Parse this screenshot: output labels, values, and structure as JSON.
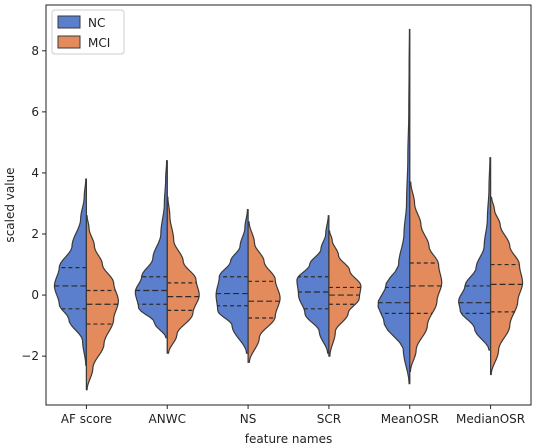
{
  "chart_data": {
    "type": "violin",
    "title": "",
    "xlabel": "feature names",
    "ylabel": "scaled value",
    "ylim": [
      -3.6,
      9.5
    ],
    "yticks": [
      -2,
      0,
      2,
      4,
      6,
      8
    ],
    "grid": false,
    "legend_position": "top-left",
    "categories": [
      "AF score",
      "ANWC",
      "NS",
      "SCR",
      "MeanOSR",
      "MedianOSR"
    ],
    "series": [
      {
        "name": "NC",
        "color": "#5b7fcc",
        "violins": [
          {
            "ymin": -2.3,
            "ymax": 3.8,
            "q1": -0.45,
            "median": 0.3,
            "q3": 0.9,
            "profile": [
              [
                -2.3,
                0.02
              ],
              [
                -1.5,
                0.12
              ],
              [
                -0.8,
                0.55
              ],
              [
                -0.3,
                0.85
              ],
              [
                0.3,
                1.0
              ],
              [
                0.9,
                0.85
              ],
              [
                1.6,
                0.45
              ],
              [
                2.5,
                0.18
              ],
              [
                3.2,
                0.07
              ],
              [
                3.8,
                0.02
              ]
            ]
          },
          {
            "ymin": -1.4,
            "ymax": 4.4,
            "q1": -0.3,
            "median": 0.15,
            "q3": 0.6,
            "profile": [
              [
                -1.4,
                0.04
              ],
              [
                -0.9,
                0.4
              ],
              [
                -0.4,
                0.9
              ],
              [
                0.1,
                1.0
              ],
              [
                0.6,
                0.8
              ],
              [
                1.2,
                0.45
              ],
              [
                2.0,
                0.2
              ],
              [
                3.0,
                0.09
              ],
              [
                3.8,
                0.05
              ],
              [
                4.4,
                0.02
              ]
            ]
          },
          {
            "ymin": -1.9,
            "ymax": 2.8,
            "q1": -0.35,
            "median": 0.05,
            "q3": 0.6,
            "profile": [
              [
                -1.9,
                0.05
              ],
              [
                -1.0,
                0.5
              ],
              [
                -0.5,
                0.95
              ],
              [
                0.0,
                1.0
              ],
              [
                0.6,
                0.9
              ],
              [
                1.1,
                0.55
              ],
              [
                1.6,
                0.25
              ],
              [
                2.2,
                0.1
              ],
              [
                2.8,
                0.02
              ]
            ]
          },
          {
            "ymin": -1.9,
            "ymax": 2.6,
            "q1": -0.45,
            "median": 0.1,
            "q3": 0.6,
            "profile": [
              [
                -1.9,
                0.04
              ],
              [
                -1.2,
                0.3
              ],
              [
                -0.6,
                0.75
              ],
              [
                0.0,
                0.95
              ],
              [
                0.5,
                1.0
              ],
              [
                1.0,
                0.6
              ],
              [
                1.5,
                0.25
              ],
              [
                2.0,
                0.1
              ],
              [
                2.6,
                0.02
              ]
            ]
          },
          {
            "ymin": -2.9,
            "ymax": 8.7,
            "q1": -0.6,
            "median": -0.25,
            "q3": 0.25,
            "profile": [
              [
                -2.9,
                0.02
              ],
              [
                -1.8,
                0.2
              ],
              [
                -0.9,
                0.8
              ],
              [
                -0.3,
                1.0
              ],
              [
                0.3,
                0.75
              ],
              [
                1.0,
                0.35
              ],
              [
                2.0,
                0.18
              ],
              [
                3.0,
                0.1
              ],
              [
                4.5,
                0.06
              ],
              [
                6.0,
                0.03
              ],
              [
                7.5,
                0.02
              ],
              [
                8.7,
                0.01
              ]
            ]
          },
          {
            "ymin": -1.8,
            "ymax": 4.5,
            "q1": -0.6,
            "median": -0.25,
            "q3": 0.3,
            "profile": [
              [
                -1.8,
                0.05
              ],
              [
                -1.1,
                0.5
              ],
              [
                -0.5,
                0.95
              ],
              [
                -0.2,
                1.0
              ],
              [
                0.3,
                0.8
              ],
              [
                0.9,
                0.45
              ],
              [
                1.6,
                0.2
              ],
              [
                2.5,
                0.1
              ],
              [
                3.5,
                0.05
              ],
              [
                4.5,
                0.02
              ]
            ]
          }
        ]
      },
      {
        "name": "MCI",
        "color": "#e38b5c",
        "violins": [
          {
            "ymin": -3.1,
            "ymax": 2.6,
            "q1": -0.95,
            "median": -0.3,
            "q3": 0.15,
            "profile": [
              [
                -3.1,
                0.02
              ],
              [
                -2.4,
                0.2
              ],
              [
                -1.6,
                0.55
              ],
              [
                -0.8,
                0.85
              ],
              [
                -0.2,
                1.0
              ],
              [
                0.4,
                0.85
              ],
              [
                1.0,
                0.5
              ],
              [
                1.6,
                0.25
              ],
              [
                2.2,
                0.08
              ],
              [
                2.6,
                0.02
              ]
            ]
          },
          {
            "ymin": -1.9,
            "ymax": 3.2,
            "q1": -0.5,
            "median": -0.05,
            "q3": 0.4,
            "profile": [
              [
                -1.9,
                0.04
              ],
              [
                -1.3,
                0.3
              ],
              [
                -0.6,
                0.8
              ],
              [
                0.0,
                1.0
              ],
              [
                0.5,
                0.9
              ],
              [
                1.1,
                0.5
              ],
              [
                1.8,
                0.2
              ],
              [
                2.6,
                0.08
              ],
              [
                3.2,
                0.02
              ]
            ]
          },
          {
            "ymin": -2.2,
            "ymax": 2.4,
            "q1": -0.75,
            "median": -0.2,
            "q3": 0.45,
            "profile": [
              [
                -2.2,
                0.04
              ],
              [
                -1.4,
                0.35
              ],
              [
                -0.7,
                0.85
              ],
              [
                -0.1,
                1.0
              ],
              [
                0.5,
                0.85
              ],
              [
                1.1,
                0.5
              ],
              [
                1.7,
                0.2
              ],
              [
                2.4,
                0.03
              ]
            ]
          },
          {
            "ymin": -2.0,
            "ymax": 2.1,
            "q1": -0.3,
            "median": 0.0,
            "q3": 0.25,
            "profile": [
              [
                -2.0,
                0.03
              ],
              [
                -1.2,
                0.2
              ],
              [
                -0.6,
                0.6
              ],
              [
                -0.1,
                0.95
              ],
              [
                0.3,
                1.0
              ],
              [
                0.8,
                0.65
              ],
              [
                1.3,
                0.3
              ],
              [
                1.8,
                0.1
              ],
              [
                2.1,
                0.02
              ]
            ]
          },
          {
            "ymin": -2.5,
            "ymax": 3.7,
            "q1": -0.6,
            "median": 0.3,
            "q3": 1.05,
            "profile": [
              [
                -2.5,
                0.02
              ],
              [
                -1.8,
                0.2
              ],
              [
                -1.0,
                0.55
              ],
              [
                -0.2,
                0.85
              ],
              [
                0.4,
                1.0
              ],
              [
                1.0,
                0.9
              ],
              [
                1.6,
                0.6
              ],
              [
                2.3,
                0.35
              ],
              [
                3.0,
                0.15
              ],
              [
                3.7,
                0.03
              ]
            ]
          },
          {
            "ymin": -2.6,
            "ymax": 3.2,
            "q1": -0.55,
            "median": 0.35,
            "q3": 1.0,
            "profile": [
              [
                -2.6,
                0.02
              ],
              [
                -1.8,
                0.25
              ],
              [
                -1.0,
                0.6
              ],
              [
                -0.2,
                0.85
              ],
              [
                0.4,
                1.0
              ],
              [
                1.0,
                0.9
              ],
              [
                1.6,
                0.6
              ],
              [
                2.3,
                0.3
              ],
              [
                2.8,
                0.12
              ],
              [
                3.2,
                0.03
              ]
            ]
          }
        ]
      }
    ]
  }
}
